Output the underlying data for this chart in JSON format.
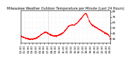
{
  "title": "Milwaukee Weather Outdoor Temperature per Minute (Last 24 Hours)",
  "background_color": "#ffffff",
  "line_color": "#ff0000",
  "grid_color": "#aaaaaa",
  "ylim": [
    22,
    82
  ],
  "yticks": [
    30,
    40,
    50,
    60,
    70,
    80
  ],
  "num_points": 1440,
  "temperature_profile": [
    35,
    34,
    33,
    33,
    32,
    31,
    31,
    30,
    30,
    29,
    29,
    29,
    29,
    29,
    29,
    30,
    30,
    31,
    32,
    33,
    34,
    35,
    37,
    38,
    39,
    40,
    41,
    42,
    42,
    41,
    40,
    39,
    38,
    37,
    36,
    36,
    35,
    35,
    35,
    35,
    35,
    36,
    36,
    37,
    38,
    39,
    40,
    41,
    43,
    45,
    47,
    49,
    51,
    53,
    54,
    55,
    55,
    55,
    55,
    55,
    56,
    57,
    58,
    60,
    62,
    64,
    66,
    68,
    70,
    72,
    74,
    76,
    77,
    75,
    70,
    66,
    62,
    59,
    57,
    55,
    54,
    53,
    52,
    51,
    50,
    49,
    48,
    47,
    46,
    45,
    44,
    43,
    42,
    41,
    40,
    39,
    38,
    37,
    35,
    27
  ],
  "vline_pos": 0.305,
  "vline_color": "#999999",
  "tick_labelsize": 3.0,
  "title_fontsize": 3.5,
  "n_xticks": 24
}
